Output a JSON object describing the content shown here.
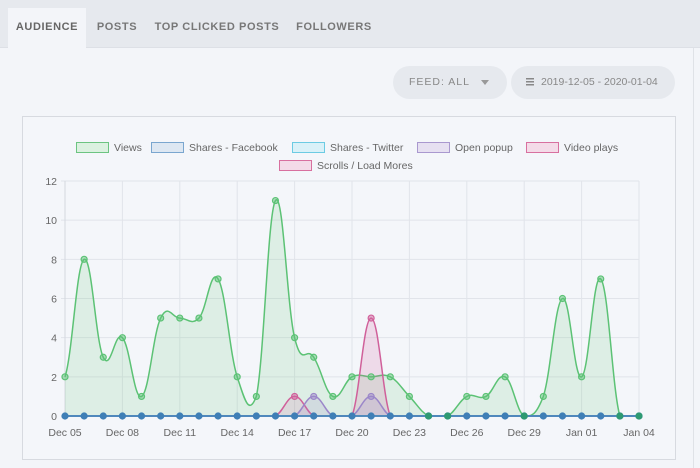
{
  "tabs": [
    {
      "label": "AUDIENCE",
      "active": true
    },
    {
      "label": "POSTS",
      "active": false
    },
    {
      "label": "TOP CLICKED POSTS",
      "active": false
    },
    {
      "label": "FOLLOWERS",
      "active": false
    }
  ],
  "filters": {
    "feed_label": "FEED: ALL",
    "feed_icon": "caret-down-icon",
    "date_range": "2019-12-05 - 2020-01-04",
    "date_icon": "calendar-icon"
  },
  "chart_data": {
    "type": "line",
    "subtype": "area",
    "title": "",
    "xlabel": "",
    "ylabel": "",
    "ylim": [
      0,
      12
    ],
    "yticks": [
      0,
      2,
      4,
      6,
      8,
      10,
      12
    ],
    "grid": true,
    "legend_position": "top",
    "x": [
      "Dec 05",
      "Dec 06",
      "Dec 07",
      "Dec 08",
      "Dec 09",
      "Dec 10",
      "Dec 11",
      "Dec 12",
      "Dec 13",
      "Dec 14",
      "Dec 15",
      "Dec 16",
      "Dec 17",
      "Dec 18",
      "Dec 19",
      "Dec 20",
      "Dec 21",
      "Dec 22",
      "Dec 23",
      "Dec 24",
      "Dec 25",
      "Dec 26",
      "Dec 27",
      "Dec 28",
      "Dec 29",
      "Dec 30",
      "Dec 31",
      "Jan 01",
      "Jan 02",
      "Jan 03",
      "Jan 04"
    ],
    "xtick_labels": [
      "Dec 05",
      "Dec 08",
      "Dec 11",
      "Dec 14",
      "Dec 17",
      "Dec 20",
      "Dec 23",
      "Dec 26",
      "Dec 29",
      "Jan 01",
      "Jan 04"
    ],
    "series": [
      {
        "name": "Views",
        "color": "#5cc275",
        "fill": "rgba(92,194,117,0.15)",
        "values": [
          2,
          8,
          3,
          4,
          1,
          5,
          5,
          5,
          7,
          2,
          1,
          11,
          4,
          3,
          1,
          2,
          2,
          2,
          1,
          0,
          0,
          1,
          1,
          2,
          0,
          1,
          6,
          2,
          7,
          0,
          0
        ]
      },
      {
        "name": "Shares - Facebook",
        "color": "#3f7fb6",
        "fill": "rgba(63,127,182,0.15)",
        "values": [
          0,
          0,
          0,
          0,
          0,
          0,
          0,
          0,
          0,
          0,
          0,
          0,
          0,
          0,
          0,
          0,
          0,
          0,
          0,
          0,
          0,
          0,
          0,
          0,
          0,
          0,
          0,
          0,
          0,
          0,
          0
        ]
      },
      {
        "name": "Shares - Twitter",
        "color": "#4cc3e0",
        "fill": "rgba(76,195,224,0.15)",
        "values": [
          0,
          0,
          0,
          0,
          0,
          0,
          0,
          0,
          0,
          0,
          0,
          0,
          0,
          0,
          0,
          0,
          0,
          0,
          0,
          0,
          0,
          0,
          0,
          0,
          0,
          0,
          0,
          0,
          0,
          0,
          0
        ]
      },
      {
        "name": "Open popup",
        "color": "#9b87c9",
        "fill": "rgba(155,135,201,0.18)",
        "values": [
          0,
          0,
          0,
          0,
          0,
          0,
          0,
          0,
          0,
          0,
          0,
          0,
          0,
          1,
          0,
          0,
          1,
          0,
          0,
          0,
          0,
          0,
          0,
          0,
          0,
          0,
          0,
          0,
          0,
          0,
          0
        ]
      },
      {
        "name": "Video plays",
        "color": "#d0609a",
        "fill": "rgba(208,96,154,0.15)",
        "values": [
          0,
          0,
          0,
          0,
          0,
          0,
          0,
          0,
          0,
          0,
          0,
          0,
          1,
          0,
          0,
          0,
          0,
          0,
          0,
          0,
          0,
          0,
          0,
          0,
          0,
          0,
          0,
          0,
          0,
          0,
          0
        ]
      },
      {
        "name": "Scrolls / Load Mores",
        "color": "#d0609a",
        "fill": "rgba(208,96,154,0.18)",
        "values": [
          0,
          0,
          0,
          0,
          0,
          0,
          0,
          0,
          0,
          0,
          0,
          0,
          0,
          0,
          0,
          0,
          5,
          0,
          0,
          0,
          0,
          0,
          0,
          0,
          0,
          0,
          0,
          0,
          0,
          0,
          0
        ]
      }
    ]
  },
  "legend": [
    {
      "label": "Views",
      "border": "#6cc481",
      "bg": "#dbf1e0"
    },
    {
      "label": "Shares - Facebook",
      "border": "#7aa6cf",
      "bg": "#dde7f2"
    },
    {
      "label": "Shares - Twitter",
      "border": "#6ccbe3",
      "bg": "#d9f1f8"
    },
    {
      "label": "Open popup",
      "border": "#a998cf",
      "bg": "#e6e0f1"
    },
    {
      "label": "Video plays",
      "border": "#d8709f",
      "bg": "#f4dbe8"
    },
    {
      "label": "Scrolls / Load Mores",
      "border": "#d8709f",
      "bg": "#f4dbe8"
    }
  ]
}
